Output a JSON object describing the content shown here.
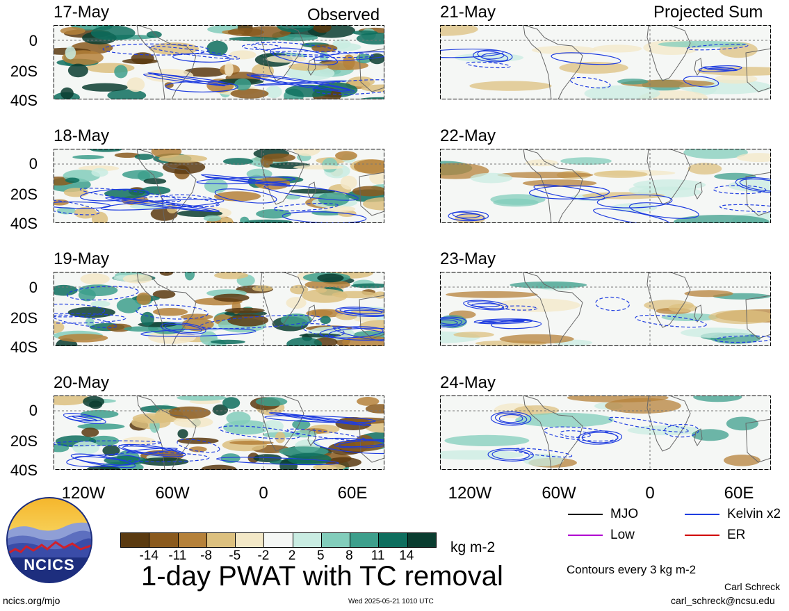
{
  "header": {
    "left_label": "Observed",
    "right_label": "Projected Sum"
  },
  "panels_left": [
    {
      "date": "17-May"
    },
    {
      "date": "18-May"
    },
    {
      "date": "19-May"
    },
    {
      "date": "20-May"
    }
  ],
  "panels_right": [
    {
      "date": "21-May"
    },
    {
      "date": "22-May"
    },
    {
      "date": "23-May"
    },
    {
      "date": "24-May"
    }
  ],
  "lat_ticks": [
    "0",
    "20S",
    "40S"
  ],
  "lon_ticks": [
    "120W",
    "60W",
    "0",
    "60E"
  ],
  "colorbar": {
    "colors": [
      "#5a3a10",
      "#8a5a1e",
      "#b5813a",
      "#dcc07f",
      "#f3e8c7",
      "#f5f7f5",
      "#c9ece2",
      "#82cdbb",
      "#3d9f8c",
      "#0e6e5e",
      "#0a3d30"
    ],
    "ticks": [
      "-14",
      "-11",
      "-8",
      "-5",
      "-2",
      "2",
      "5",
      "8",
      "11",
      "14"
    ],
    "unit": "kg m-2"
  },
  "title": "1-day PWAT with TC removal",
  "legend": {
    "items": [
      {
        "label": "MJO",
        "color": "#000000"
      },
      {
        "label": "Kelvin x2",
        "color": "#1f3de0"
      },
      {
        "label": "Low",
        "color": "#b000d0"
      },
      {
        "label": "ER",
        "color": "#d00000"
      }
    ],
    "contours_note": "Contours every 3 kg m-2"
  },
  "footer": {
    "site": "ncics.org/mjo",
    "timestamp": "Wed 2025-05-21 1010 UTC",
    "author": "Carl Schreck",
    "email": "carl_schreck@ncsu.edu"
  },
  "logo": {
    "text": "NCICS"
  }
}
